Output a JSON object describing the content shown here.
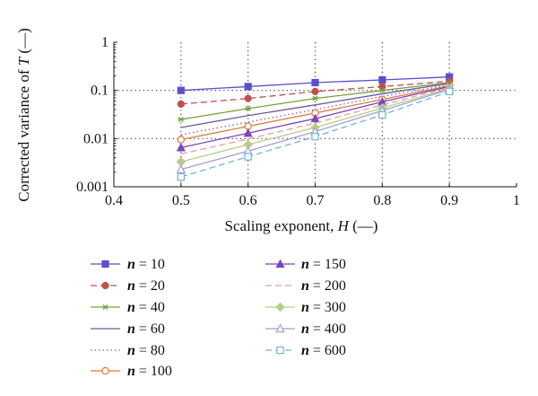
{
  "chart_data": {
    "type": "line",
    "xlabel": {
      "prefix": "Scaling exponent, ",
      "var": "H",
      "suffix": " (—)"
    },
    "ylabel": {
      "prefix": "Corrected variance of ",
      "var": "T",
      "suffix": " (—)"
    },
    "xlim": [
      0.4,
      1.0
    ],
    "ylim": [
      0.001,
      1
    ],
    "yscale": "log",
    "grid": "dotted",
    "x_ticks": [
      0.4,
      0.5,
      0.6,
      0.7,
      0.8,
      0.9,
      1.0
    ],
    "x_tick_labels": [
      "0.4",
      "0.5",
      "0.6",
      "0.7",
      "0.8",
      "0.9",
      "1"
    ],
    "y_ticks": [
      0.001,
      0.01,
      0.1,
      1
    ],
    "y_tick_labels": [
      "0.001",
      "0.01",
      "0.1",
      "1"
    ],
    "legend_placement": "below",
    "x": [
      0.5,
      0.6,
      0.7,
      0.8,
      0.9
    ],
    "series": [
      {
        "name": "n = 10",
        "color": "#5a4fcf",
        "dash": "",
        "marker": "square-filled",
        "values": [
          0.1,
          0.12,
          0.145,
          0.165,
          0.19
        ]
      },
      {
        "name": "n = 20",
        "color": "#c0504d",
        "dash": "7,4",
        "marker": "circle-filled",
        "values": [
          0.052,
          0.068,
          0.095,
          0.12,
          0.155
        ]
      },
      {
        "name": "n = 40",
        "color": "#77a33c",
        "dash": "",
        "marker": "star",
        "values": [
          0.025,
          0.042,
          0.068,
          0.1,
          0.145
        ]
      },
      {
        "name": "n = 60",
        "color": "#6a5a9e",
        "dash": "",
        "marker": "none",
        "values": [
          0.017,
          0.03,
          0.05,
          0.085,
          0.14
        ]
      },
      {
        "name": "n = 80",
        "color": "#8a55c8",
        "dash": "1.5,3",
        "marker": "none",
        "values": [
          0.012,
          0.022,
          0.04,
          0.075,
          0.13
        ]
      },
      {
        "name": "n = 100",
        "color": "#e07b39",
        "dash": "",
        "marker": "circle-open",
        "values": [
          0.0095,
          0.018,
          0.034,
          0.065,
          0.125
        ]
      },
      {
        "name": "n = 150",
        "color": "#7a46c0",
        "dash": "",
        "marker": "triangle-filled",
        "values": [
          0.0065,
          0.013,
          0.026,
          0.058,
          0.12
        ]
      },
      {
        "name": "n = 200",
        "color": "#e4a0a0",
        "dash": "7,4",
        "marker": "none",
        "values": [
          0.0048,
          0.0098,
          0.021,
          0.05,
          0.115
        ]
      },
      {
        "name": "n = 300",
        "color": "#b5cf8a",
        "dash": "",
        "marker": "diamond-filled",
        "values": [
          0.0033,
          0.0075,
          0.017,
          0.043,
          0.11
        ]
      },
      {
        "name": "n = 400",
        "color": "#a99ccf",
        "dash": "",
        "marker": "triangle-open",
        "values": [
          0.0023,
          0.0055,
          0.014,
          0.038,
          0.105
        ]
      },
      {
        "name": "n = 600",
        "color": "#6fb6d9",
        "dash": "7,4",
        "marker": "square-open",
        "values": [
          0.0016,
          0.0042,
          0.011,
          0.031,
          0.095
        ]
      }
    ]
  }
}
